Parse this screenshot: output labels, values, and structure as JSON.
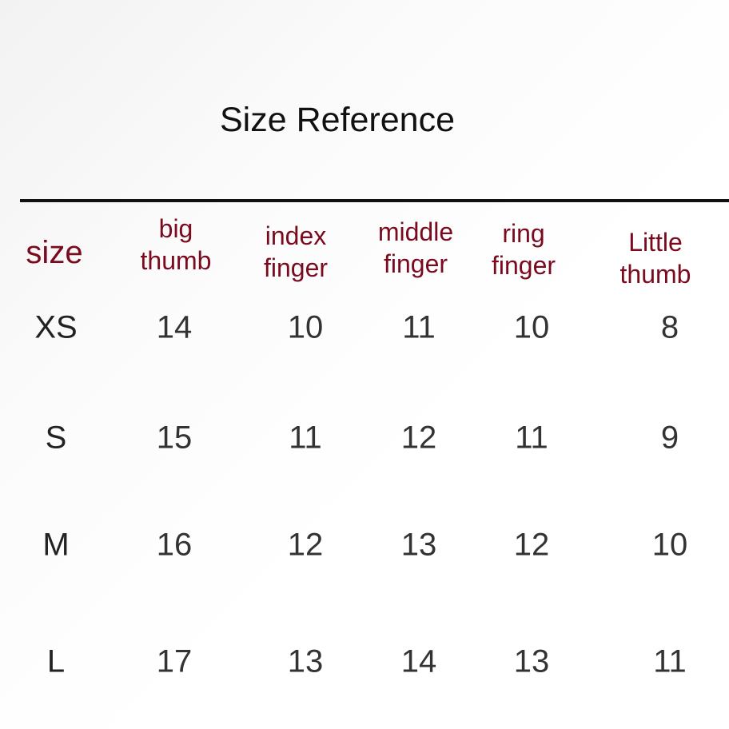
{
  "title": "Size Reference",
  "header_color": "#7a0a1e",
  "headers": [
    {
      "line1": "size",
      "line2": ""
    },
    {
      "line1": "big",
      "line2": "thumb"
    },
    {
      "line1": "index",
      "line2": "finger"
    },
    {
      "line1": "middle",
      "line2": "finger"
    },
    {
      "line1": "ring",
      "line2": "finger"
    },
    {
      "line1": "Little",
      "line2": "thumb"
    }
  ],
  "rows": [
    [
      "XS",
      "14",
      "10",
      "11",
      "10",
      "8"
    ],
    [
      "S",
      "15",
      "11",
      "12",
      "11",
      "9"
    ],
    [
      "M",
      "16",
      "12",
      "13",
      "12",
      "10"
    ],
    [
      "L",
      "17",
      "13",
      "14",
      "13",
      "11"
    ]
  ]
}
